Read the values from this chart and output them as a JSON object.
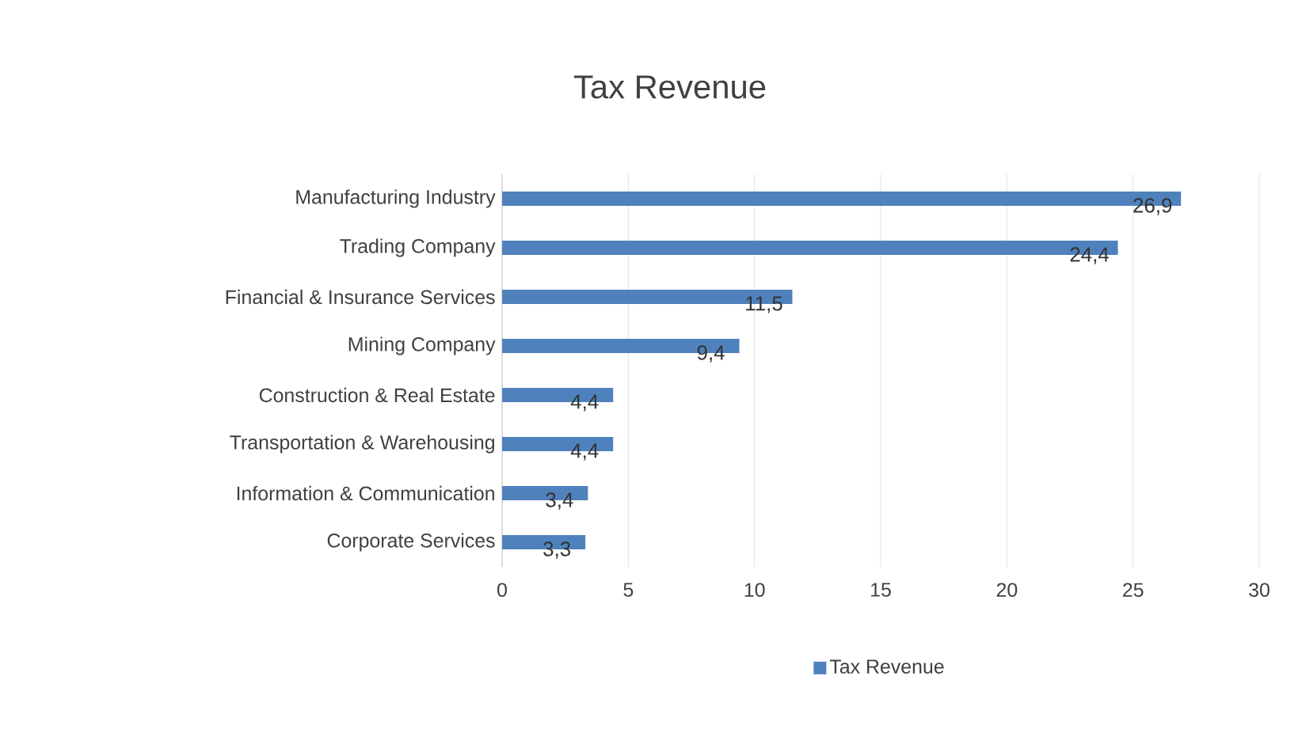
{
  "chart_data": {
    "type": "bar",
    "orientation": "horizontal",
    "title": "Tax Revenue",
    "categories": [
      "Manufacturing Industry",
      "Trading Company",
      "Financial & Insurance Services",
      "Mining Company",
      "Construction & Real Estate",
      "Transportation & Warehousing",
      "Information & Communication",
      "Corporate Services"
    ],
    "series": [
      {
        "name": "Tax Revenue",
        "color": "#4f81bd",
        "values": [
          26.9,
          24.4,
          11.5,
          9.4,
          4.4,
          4.4,
          3.4,
          3.3
        ],
        "value_labels": [
          "26,9",
          "24,4",
          "11,5",
          "9,4",
          "4,4",
          "4,4",
          "3,4",
          "3,3"
        ]
      }
    ],
    "xlim": [
      0,
      30
    ],
    "xticks": [
      0,
      5,
      10,
      15,
      20,
      25,
      30
    ],
    "grid": "x",
    "legend": "bottom"
  }
}
